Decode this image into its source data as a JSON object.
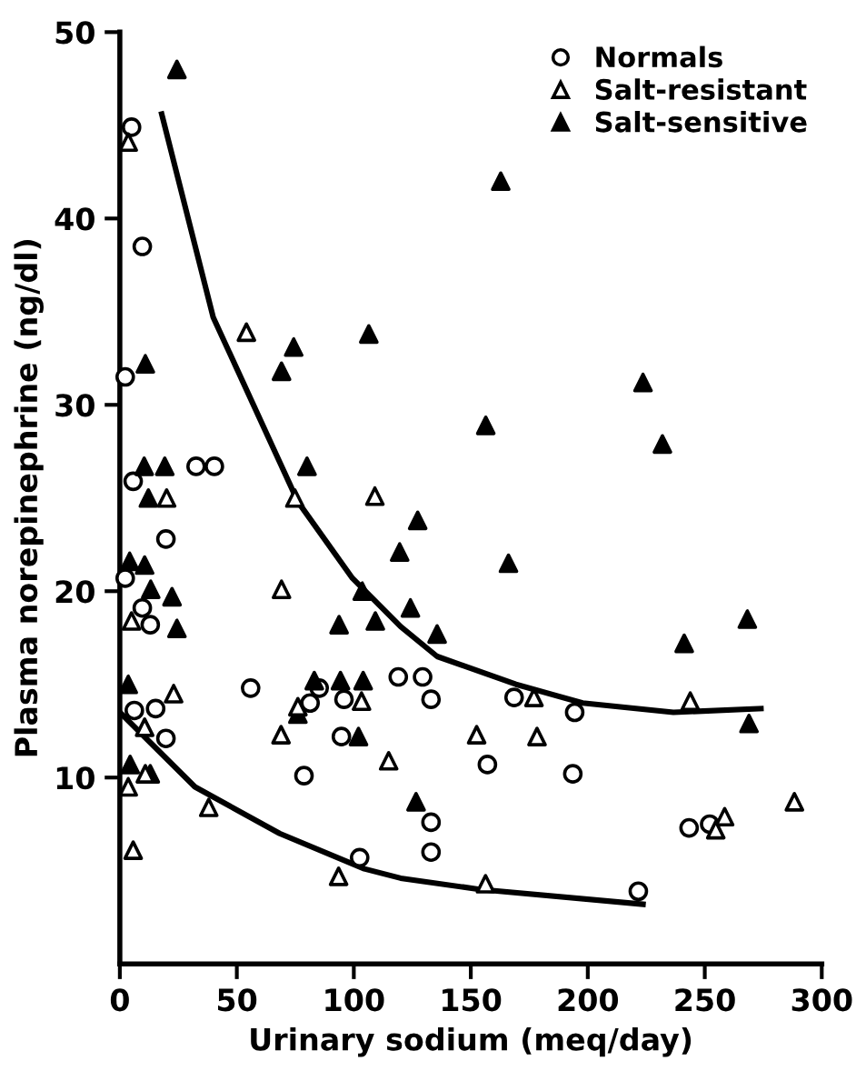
{
  "chart_data": {
    "type": "scatter",
    "xlabel": "Urinary sodium (meq/day)",
    "ylabel": "Plasma norepinephrine (ng/dl)",
    "xlim": [
      0,
      300
    ],
    "ylim": [
      0,
      50
    ],
    "xticks": [
      0,
      50,
      100,
      150,
      200,
      250,
      300
    ],
    "yticks": [
      10,
      20,
      30,
      40,
      50
    ],
    "grid": false,
    "legend": "top right",
    "series": [
      {
        "name": "Normals",
        "color": "#ffffff",
        "marker": "circle",
        "x": [
          5,
          9.6,
          2.3,
          5.7,
          32.6,
          40.4,
          19.7,
          2.3,
          9.6,
          13,
          6.2,
          15.3,
          19.7,
          55.9,
          85.2,
          81.3,
          78.7,
          95.8,
          94.7,
          102.5,
          119,
          129.4,
          133,
          133,
          133,
          168.5,
          194.4,
          157.1,
          193.6,
          243.3,
          252.1,
          221.6
        ],
        "values": [
          44.9,
          38.5,
          31.5,
          25.9,
          26.7,
          26.7,
          22.8,
          20.7,
          19.1,
          18.2,
          13.6,
          13.7,
          12.1,
          14.8,
          14.8,
          14,
          10.1,
          14.2,
          12.2,
          5.7,
          15.4,
          15.4,
          14.2,
          7.6,
          6,
          14.3,
          13.5,
          10.7,
          10.2,
          7.3,
          7.5,
          3.9
        ]
      },
      {
        "name": "Salt-resistant",
        "color": "#ffffff",
        "marker": "triangle",
        "x": [
          3.6,
          54.1,
          74.8,
          20,
          109,
          69.1,
          5,
          23,
          10.6,
          3.6,
          10.9,
          5.7,
          38,
          76.1,
          68.9,
          103.3,
          114.9,
          93.5,
          177,
          152.5,
          178.3,
          156.3,
          243.8,
          288.3,
          258.5,
          254.7
        ],
        "values": [
          44.1,
          33.9,
          25,
          25,
          25.1,
          20.1,
          18.4,
          14.5,
          12.7,
          9.5,
          10.2,
          6.1,
          8.4,
          13.8,
          12.3,
          14.1,
          10.9,
          4.7,
          14.3,
          12.3,
          12.2,
          4.3,
          14.1,
          8.7,
          7.9,
          7.2
        ]
      },
      {
        "name": "Salt-sensitive",
        "color": "#000000",
        "marker": "triangle",
        "x": [
          24.4,
          10.9,
          10.4,
          19.2,
          12.2,
          74.3,
          69.1,
          80,
          106.4,
          127.3,
          162.8,
          223.6,
          156.4,
          231.9,
          4.2,
          10.6,
          13.2,
          22.3,
          24.4,
          3.6,
          4.4,
          13,
          119.6,
          103.6,
          93.7,
          109.2,
          124.2,
          83.1,
          94.3,
          104,
          76.1,
          102,
          126.6,
          135.6,
          166.1,
          241.2,
          268.2,
          268.9
        ],
        "values": [
          48,
          32.2,
          26.7,
          26.7,
          25,
          33.1,
          31.8,
          26.7,
          33.8,
          23.8,
          42,
          31.2,
          28.9,
          27.9,
          21.6,
          21.4,
          20.1,
          19.7,
          18,
          15,
          10.7,
          10.2,
          22.1,
          20,
          18.2,
          18.4,
          19.1,
          15.2,
          15.2,
          15.2,
          13.4,
          12.2,
          8.7,
          17.7,
          21.5,
          17.2,
          18.5,
          12.9
        ]
      },
      {
        "type": "line",
        "color": "#000000",
        "line_style": "solid",
        "x": [
          17.9,
          39.9,
          76.1,
          99.4,
          120,
          135.6,
          169.3,
          197.8,
          236.6,
          274
        ],
        "values": [
          45.6,
          34.7,
          24.8,
          20.7,
          18.1,
          16.5,
          15,
          14,
          13.5,
          13.7
        ]
      },
      {
        "type": "line",
        "color": "#000000",
        "line_style": "solid",
        "x": [
          0,
          32.1,
          68.3,
          104.5,
          120,
          153.7,
          223.6
        ],
        "values": [
          13.5,
          9.5,
          7,
          5.1,
          4.6,
          4,
          3.2
        ]
      }
    ]
  }
}
